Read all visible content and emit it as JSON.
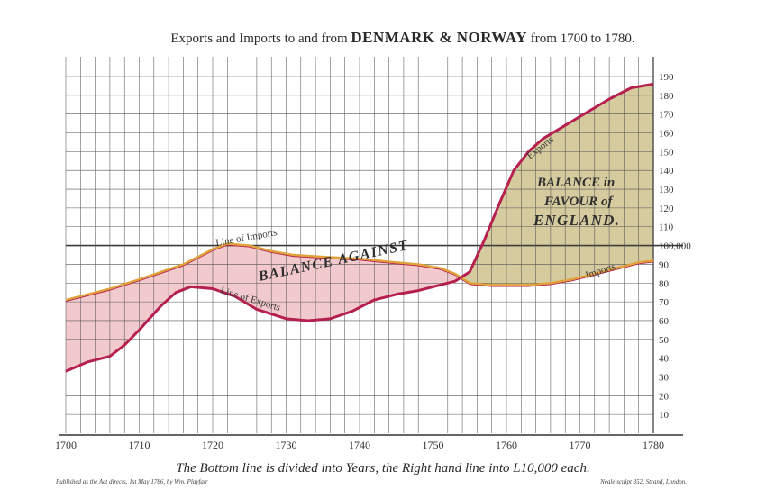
{
  "chart_data": {
    "type": "area",
    "title_parts": {
      "pre": "Exports and Imports to and from ",
      "big": "DENMARK & NORWAY",
      "post": " from 1700 to 1780."
    },
    "xlim": [
      1700,
      1780
    ],
    "ylim": [
      0,
      190
    ],
    "x_ticks": [
      1700,
      1710,
      1720,
      1730,
      1740,
      1750,
      1760,
      1770,
      1780
    ],
    "y_ticks": [
      10,
      20,
      30,
      40,
      50,
      60,
      70,
      80,
      90,
      100,
      110,
      120,
      130,
      140,
      150,
      160,
      170,
      180,
      190
    ],
    "y_tick_special": {
      "value": 100,
      "label": "100,000"
    },
    "grid": true,
    "series": [
      {
        "name": "Line of Exports",
        "color": "#b5204f",
        "x": [
          1700,
          1703,
          1706,
          1708,
          1710,
          1713,
          1715,
          1717,
          1720,
          1723,
          1726,
          1730,
          1733,
          1736,
          1739,
          1742,
          1745,
          1748,
          1750,
          1753,
          1755,
          1757,
          1759,
          1761,
          1763,
          1765,
          1768,
          1771,
          1774,
          1777,
          1780
        ],
        "y": [
          33,
          38,
          41,
          47,
          55,
          68,
          75,
          78,
          77,
          73,
          66,
          61,
          60,
          61,
          65,
          71,
          74,
          76,
          78,
          81,
          86,
          103,
          122,
          140,
          150,
          157,
          164,
          171,
          178,
          184,
          186
        ]
      },
      {
        "name": "Line of Imports",
        "color": "#e0a33b",
        "x": [
          1700,
          1703,
          1706,
          1710,
          1713,
          1716,
          1720,
          1722,
          1725,
          1728,
          1731,
          1735,
          1740,
          1745,
          1748,
          1751,
          1753,
          1755,
          1758,
          1761,
          1763,
          1766,
          1769,
          1772,
          1775,
          1778,
          1780
        ],
        "y": [
          71,
          74,
          77,
          82,
          86,
          90,
          98,
          101,
          100,
          97,
          95,
          94,
          93,
          91,
          90,
          88,
          85,
          80,
          79,
          79,
          79,
          80,
          82,
          85,
          88,
          91,
          92
        ]
      }
    ],
    "annotations": {
      "imports_line_left": "Line of Imports",
      "exports_line_left": "Line of Exports",
      "exports_right": "Exports",
      "imports_right": "Imports",
      "balance_against": "BALANCE AGAINST",
      "balance_favour_1": "BALANCE in",
      "balance_favour_2": "FAVOUR of",
      "balance_favour_3": "ENGLAND."
    },
    "colors": {
      "against_fill": "#f2c9cc",
      "favour_fill": "#d6cb9e",
      "grid": "#555555"
    },
    "caption": "The Bottom line is divided into Years, the Right hand line into L10,000 each.",
    "imprint_left": "Published as the Act directs, 1st May 1786, by Wm. Playfair",
    "imprint_right": "Neale sculpt 352, Strand, London."
  }
}
